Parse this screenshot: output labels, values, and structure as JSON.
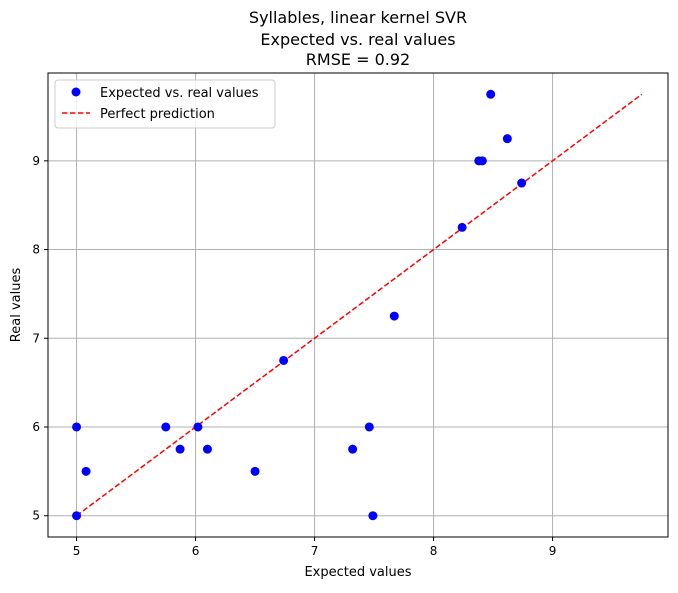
{
  "chart_data": {
    "type": "scatter",
    "title_lines": [
      "Syllables, linear kernel SVR",
      "Expected vs. real values",
      "RMSE = 0.92"
    ],
    "xlabel": "Expected values",
    "ylabel": "Real values",
    "xlim": [
      4.76,
      9.97
    ],
    "ylim": [
      4.76,
      9.99
    ],
    "xticks": [
      5,
      6,
      7,
      8,
      9
    ],
    "yticks": [
      5,
      6,
      7,
      8,
      9
    ],
    "xtick_labels": [
      "5",
      "6",
      "7",
      "8",
      "9"
    ],
    "ytick_labels": [
      "5",
      "6",
      "7",
      "8",
      "9"
    ],
    "grid": true,
    "legend_position": "upper-left",
    "series": [
      {
        "name": "Expected vs. real values",
        "kind": "scatter",
        "color": "#0000ff",
        "points": [
          [
            5.0,
            6.0
          ],
          [
            5.0,
            5.0
          ],
          [
            5.08,
            5.5
          ],
          [
            5.75,
            6.0
          ],
          [
            5.87,
            5.75
          ],
          [
            6.02,
            6.0
          ],
          [
            6.1,
            5.75
          ],
          [
            6.5,
            5.5
          ],
          [
            6.74,
            6.75
          ],
          [
            7.32,
            5.75
          ],
          [
            7.46,
            6.0
          ],
          [
            7.49,
            5.0
          ],
          [
            7.67,
            7.25
          ],
          [
            8.24,
            8.25
          ],
          [
            8.38,
            9.0
          ],
          [
            8.41,
            9.0
          ],
          [
            8.48,
            9.75
          ],
          [
            8.62,
            9.25
          ],
          [
            8.74,
            8.75
          ]
        ]
      },
      {
        "name": "Perfect prediction",
        "kind": "line",
        "color": "#ff0000",
        "dash": "dashed",
        "points": [
          [
            5.0,
            5.0
          ],
          [
            9.75,
            9.75
          ]
        ]
      }
    ]
  }
}
